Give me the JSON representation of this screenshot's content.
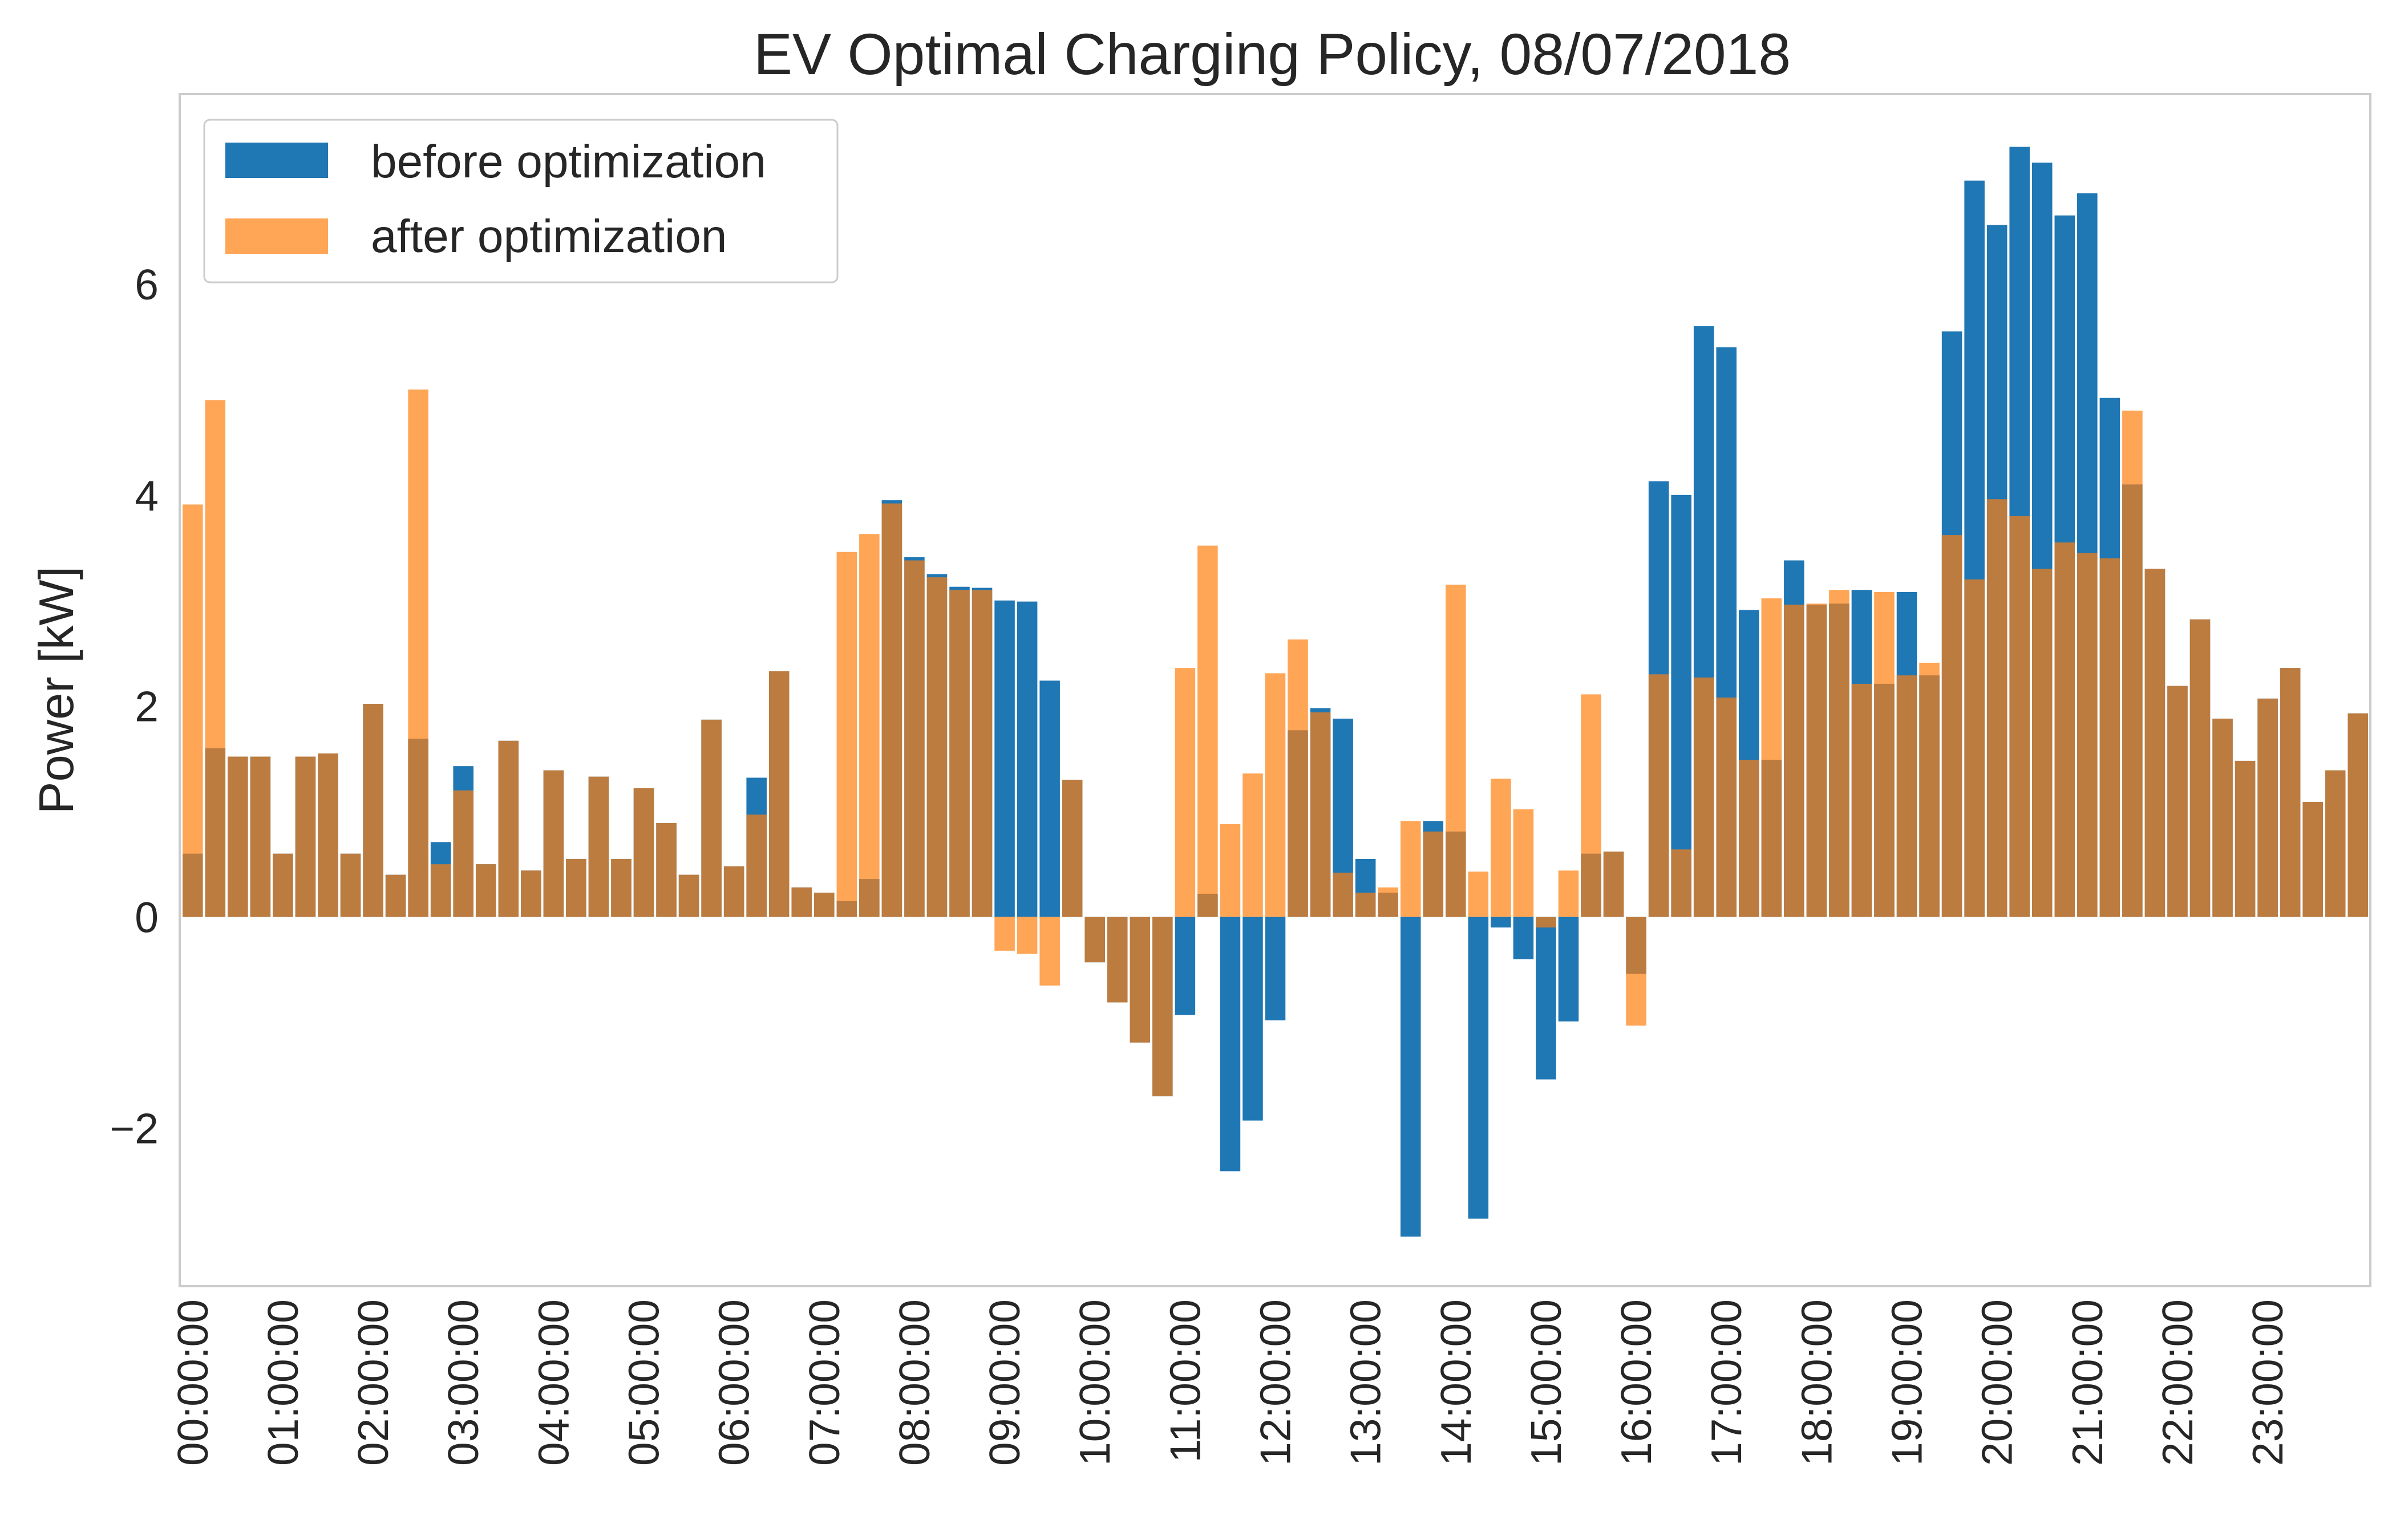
{
  "chart_data": {
    "type": "bar",
    "title": "EV Optimal Charging Policy, 08/07/2018",
    "xlabel": "",
    "ylabel": "Power [kW]",
    "ylim": [
      -3.5,
      7.8
    ],
    "yticks": [
      -2,
      0,
      2,
      4,
      6
    ],
    "ytick_labels": [
      "−2",
      "0",
      "2",
      "4",
      "6"
    ],
    "grid": false,
    "legend_position": "top-left",
    "interval_minutes": 15,
    "xtick_labels": [
      "00:00:00",
      "01:00:00",
      "02:00:00",
      "03:00:00",
      "04:00:00",
      "05:00:00",
      "06:00:00",
      "07:00:00",
      "08:00:00",
      "09:00:00",
      "10:00:00",
      "11:00:00",
      "12:00:00",
      "13:00:00",
      "14:00:00",
      "15:00:00",
      "16:00:00",
      "17:00:00",
      "18:00:00",
      "19:00:00",
      "20:00:00",
      "21:00:00",
      "22:00:00",
      "23:00:00"
    ],
    "series": [
      {
        "name": "before optimization",
        "color": "#1f77b4",
        "values": [
          0.6,
          1.6,
          1.52,
          1.52,
          0.6,
          1.52,
          1.55,
          0.6,
          2.02,
          0.4,
          1.69,
          0.71,
          1.43,
          0.5,
          1.67,
          0.44,
          1.39,
          0.55,
          1.33,
          0.55,
          1.22,
          0.89,
          0.4,
          1.87,
          0.48,
          1.32,
          2.33,
          0.28,
          0.23,
          0.15,
          0.36,
          3.95,
          3.41,
          3.25,
          3.13,
          3.12,
          3.0,
          2.99,
          2.24,
          1.3,
          -0.43,
          -0.81,
          -1.19,
          -1.7,
          -0.93,
          0.22,
          -2.41,
          -1.93,
          -0.98,
          1.77,
          1.98,
          1.88,
          0.55,
          0.23,
          -3.03,
          0.91,
          0.81,
          -2.86,
          -0.1,
          -0.4,
          -1.54,
          -0.99,
          0.6,
          0.62,
          -0.54,
          4.13,
          4.0,
          5.6,
          5.4,
          2.91,
          1.49,
          3.38,
          2.96,
          2.97,
          3.1,
          2.21,
          3.08,
          2.29,
          5.55,
          6.98,
          6.56,
          7.3,
          7.15,
          6.65,
          6.86,
          4.92,
          4.1,
          3.3,
          2.19,
          2.82,
          1.88,
          1.48,
          2.07,
          2.36,
          1.09,
          1.39,
          1.93
        ]
      },
      {
        "name": "after optimization",
        "color": "#ff7f0e",
        "values": [
          3.91,
          4.9,
          1.52,
          1.52,
          0.6,
          1.52,
          1.55,
          0.6,
          2.02,
          0.4,
          5.0,
          0.5,
          1.2,
          0.5,
          1.67,
          0.44,
          1.39,
          0.55,
          1.33,
          0.55,
          1.22,
          0.89,
          0.4,
          1.87,
          0.48,
          0.97,
          2.33,
          0.28,
          0.23,
          3.46,
          3.63,
          3.92,
          3.38,
          3.22,
          3.1,
          3.1,
          -0.32,
          -0.35,
          -0.65,
          1.3,
          -0.43,
          -0.81,
          -1.19,
          -1.7,
          2.36,
          3.52,
          0.88,
          1.36,
          2.31,
          2.63,
          1.94,
          0.42,
          0.23,
          0.28,
          0.91,
          0.81,
          3.15,
          0.43,
          1.31,
          1.02,
          -0.1,
          0.44,
          2.11,
          0.62,
          -1.03,
          2.3,
          0.64,
          2.27,
          2.08,
          1.49,
          3.02,
          2.96,
          2.97,
          3.1,
          2.21,
          3.08,
          2.29,
          2.41,
          3.62,
          3.2,
          3.96,
          3.8,
          3.3,
          3.55,
          3.45,
          3.4,
          4.8,
          3.3,
          2.19,
          2.82,
          1.88,
          1.48,
          2.07,
          2.36,
          1.09,
          1.39,
          1.93
        ]
      }
    ]
  }
}
